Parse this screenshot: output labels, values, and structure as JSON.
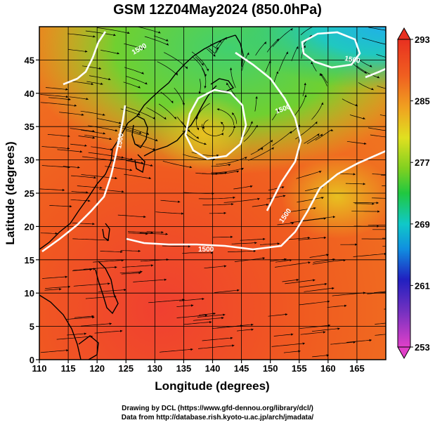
{
  "title": "GSM 12Z04May2024 (850.0hPa)",
  "axes": {
    "xlabel": "Longitude (degrees)",
    "ylabel": "Latitude  (degrees)",
    "x_ticks": [
      "110",
      "115",
      "120",
      "125",
      "130",
      "135",
      "140",
      "145",
      "150",
      "155",
      "160",
      "165"
    ],
    "y_ticks": [
      "0",
      "5",
      "10",
      "15",
      "20",
      "25",
      "30",
      "35",
      "40",
      "45"
    ],
    "x_range": [
      110,
      170
    ],
    "y_range": [
      0,
      50
    ]
  },
  "colorbar": {
    "labels": [
      "293",
      "285",
      "277",
      "269",
      "261",
      "253"
    ],
    "range": [
      253,
      293
    ],
    "colors": [
      "#e040c8",
      "#7030c0",
      "#2020c0",
      "#1090e0",
      "#10c8c8",
      "#20c840",
      "#80d020",
      "#e0e020",
      "#f0a020",
      "#f06020",
      "#e83020"
    ]
  },
  "contours": {
    "labels": [
      "1500",
      "1500",
      "1500",
      "1500",
      "1500",
      "1500"
    ],
    "color": "#ffffff"
  },
  "credits": {
    "line1": "Drawing by DCL (https://www.gfd-dennou.org/library/dcl/)",
    "line2": "Data from http://database.rish.kyoto-u.ac.jp/arch/jmadata/"
  }
}
